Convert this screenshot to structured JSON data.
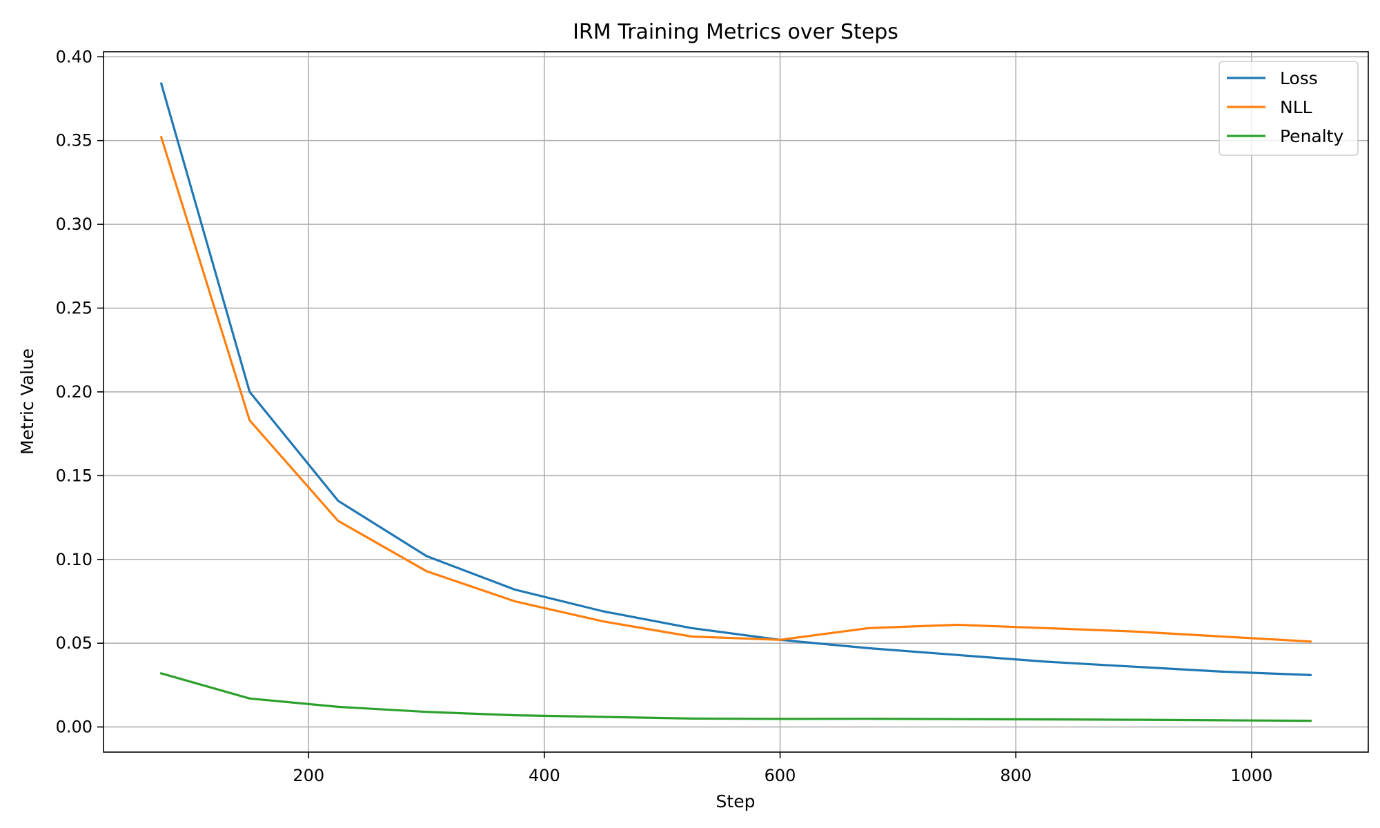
{
  "chart_data": {
    "type": "line",
    "title": "IRM Training Metrics over Steps",
    "xlabel": "Step",
    "ylabel": "Metric Value",
    "x": [
      75,
      150,
      225,
      300,
      375,
      450,
      525,
      600,
      675,
      750,
      825,
      900,
      975,
      1050
    ],
    "series": [
      {
        "name": "Loss",
        "color": "#1f77b4",
        "values": [
          0.384,
          0.2,
          0.135,
          0.102,
          0.082,
          0.069,
          0.059,
          0.052,
          0.047,
          0.043,
          0.039,
          0.036,
          0.033,
          0.031
        ]
      },
      {
        "name": "NLL",
        "color": "#ff7f0e",
        "values": [
          0.352,
          0.183,
          0.123,
          0.093,
          0.075,
          0.063,
          0.054,
          0.052,
          0.059,
          0.061,
          0.059,
          0.057,
          0.054,
          0.051
        ]
      },
      {
        "name": "Penalty",
        "color": "#2ca02c",
        "values": [
          0.032,
          0.017,
          0.012,
          0.009,
          0.007,
          0.006,
          0.005,
          0.0048,
          0.0049,
          0.0047,
          0.0045,
          0.0043,
          0.004,
          0.0037
        ]
      }
    ],
    "xlim": [
      26,
      1099
    ],
    "ylim": [
      -0.015,
      0.403
    ],
    "xticks": [
      200,
      400,
      600,
      800,
      1000
    ],
    "yticks": [
      0.0,
      0.05,
      0.1,
      0.15,
      0.2,
      0.25,
      0.3,
      0.35,
      0.4
    ],
    "ytick_labels": [
      "0.00",
      "0.05",
      "0.10",
      "0.15",
      "0.20",
      "0.25",
      "0.30",
      "0.35",
      "0.40"
    ],
    "grid": true,
    "legend_position": "top-right"
  }
}
